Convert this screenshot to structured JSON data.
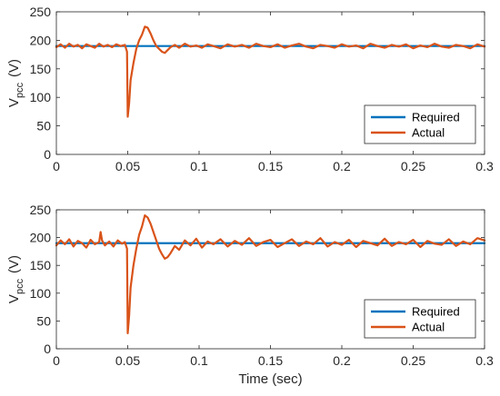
{
  "chart_data": [
    {
      "type": "line",
      "title": "",
      "xlabel": "",
      "ylabel_main": "V",
      "ylabel_sub": "pcc",
      "ylabel_unit": "(V)",
      "xlim": [
        0,
        0.3
      ],
      "ylim": [
        0,
        250
      ],
      "xticks": [
        0,
        0.05,
        0.1,
        0.15,
        0.2,
        0.25,
        0.3
      ],
      "xtick_labels": [
        "0",
        "0.05",
        "0.1",
        "0.15",
        "0.2",
        "0.25",
        "0.3"
      ],
      "yticks": [
        0,
        50,
        100,
        150,
        200,
        250
      ],
      "ytick_labels": [
        "0",
        "50",
        "100",
        "150",
        "200",
        "250"
      ],
      "grid": false,
      "legend_position": "bottom-right",
      "series": [
        {
          "name": "Required",
          "color": "#0072BD",
          "x": [
            0,
            0.3
          ],
          "y": [
            190,
            190
          ]
        },
        {
          "name": "Actual",
          "color": "#D95319",
          "x": [
            0,
            0.003,
            0.006,
            0.009,
            0.012,
            0.015,
            0.018,
            0.021,
            0.024,
            0.027,
            0.03,
            0.033,
            0.036,
            0.039,
            0.042,
            0.045,
            0.048,
            0.0495,
            0.05,
            0.051,
            0.052,
            0.054,
            0.056,
            0.058,
            0.06,
            0.062,
            0.064,
            0.066,
            0.068,
            0.07,
            0.072,
            0.074,
            0.076,
            0.078,
            0.08,
            0.083,
            0.086,
            0.09,
            0.094,
            0.098,
            0.102,
            0.106,
            0.11,
            0.115,
            0.12,
            0.125,
            0.13,
            0.135,
            0.14,
            0.145,
            0.15,
            0.155,
            0.16,
            0.165,
            0.17,
            0.175,
            0.18,
            0.185,
            0.19,
            0.195,
            0.2,
            0.205,
            0.21,
            0.215,
            0.22,
            0.225,
            0.23,
            0.235,
            0.24,
            0.245,
            0.25,
            0.255,
            0.26,
            0.265,
            0.27,
            0.275,
            0.28,
            0.285,
            0.29,
            0.295,
            0.3
          ],
          "y": [
            188,
            193,
            187,
            194,
            189,
            192,
            186,
            193,
            190,
            187,
            194,
            189,
            192,
            188,
            193,
            190,
            192,
            180,
            66,
            90,
            130,
            160,
            185,
            200,
            210,
            224,
            222,
            212,
            200,
            190,
            185,
            180,
            178,
            183,
            188,
            192,
            187,
            194,
            189,
            191,
            187,
            193,
            190,
            186,
            193,
            189,
            192,
            187,
            194,
            190,
            188,
            193,
            187,
            191,
            194,
            189,
            186,
            192,
            190,
            187,
            193,
            189,
            191,
            186,
            194,
            190,
            187,
            192,
            189,
            193,
            186,
            191,
            188,
            194,
            189,
            187,
            192,
            190,
            186,
            193,
            189
          ]
        }
      ]
    },
    {
      "type": "line",
      "title": "",
      "xlabel": "Time (sec)",
      "ylabel_main": "V",
      "ylabel_sub": "pcc",
      "ylabel_unit": "(V)",
      "xlim": [
        0,
        0.3
      ],
      "ylim": [
        0,
        250
      ],
      "xticks": [
        0,
        0.05,
        0.1,
        0.15,
        0.2,
        0.25,
        0.3
      ],
      "xtick_labels": [
        "0",
        "0.05",
        "0.1",
        "0.15",
        "0.2",
        "0.25",
        "0.3"
      ],
      "yticks": [
        0,
        50,
        100,
        150,
        200,
        250
      ],
      "ytick_labels": [
        "0",
        "50",
        "100",
        "150",
        "200",
        "250"
      ],
      "grid": false,
      "legend_position": "bottom-right",
      "series": [
        {
          "name": "Required",
          "color": "#0072BD",
          "x": [
            0,
            0.3
          ],
          "y": [
            190,
            190
          ]
        },
        {
          "name": "Actual",
          "color": "#D95319",
          "x": [
            0,
            0.003,
            0.006,
            0.009,
            0.012,
            0.015,
            0.018,
            0.021,
            0.024,
            0.027,
            0.03,
            0.031,
            0.032,
            0.034,
            0.037,
            0.04,
            0.043,
            0.046,
            0.048,
            0.0495,
            0.05,
            0.051,
            0.052,
            0.054,
            0.056,
            0.058,
            0.06,
            0.062,
            0.064,
            0.066,
            0.068,
            0.07,
            0.072,
            0.074,
            0.076,
            0.078,
            0.08,
            0.083,
            0.086,
            0.09,
            0.094,
            0.098,
            0.102,
            0.106,
            0.11,
            0.115,
            0.12,
            0.125,
            0.13,
            0.135,
            0.14,
            0.145,
            0.15,
            0.155,
            0.16,
            0.165,
            0.17,
            0.175,
            0.18,
            0.185,
            0.19,
            0.195,
            0.2,
            0.205,
            0.21,
            0.215,
            0.22,
            0.225,
            0.23,
            0.235,
            0.24,
            0.245,
            0.25,
            0.255,
            0.26,
            0.265,
            0.27,
            0.275,
            0.28,
            0.285,
            0.29,
            0.295,
            0.3
          ],
          "y": [
            186,
            195,
            188,
            197,
            184,
            194,
            190,
            182,
            196,
            188,
            192,
            210,
            195,
            186,
            193,
            184,
            195,
            189,
            192,
            180,
            28,
            60,
            110,
            150,
            180,
            205,
            220,
            240,
            236,
            225,
            210,
            195,
            180,
            170,
            162,
            165,
            172,
            185,
            178,
            195,
            186,
            198,
            182,
            193,
            188,
            197,
            184,
            194,
            187,
            199,
            185,
            192,
            196,
            183,
            190,
            197,
            185,
            193,
            188,
            199,
            184,
            192,
            187,
            196,
            183,
            194,
            190,
            186,
            198,
            185,
            192,
            188,
            196,
            183,
            194,
            189,
            187,
            197,
            185,
            193,
            188,
            199,
            195
          ]
        }
      ]
    }
  ]
}
